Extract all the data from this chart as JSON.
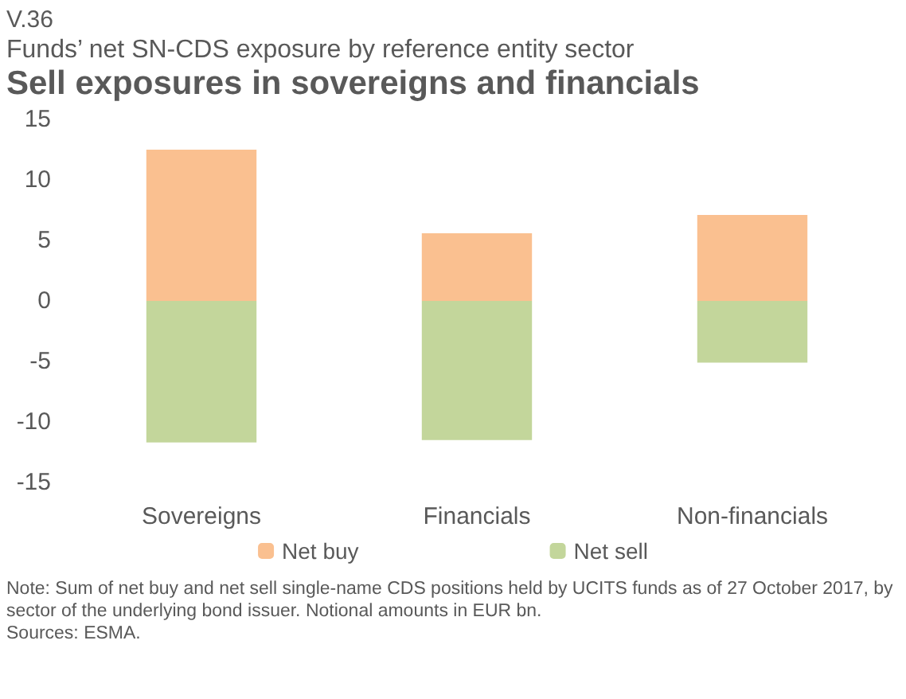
{
  "chart_data": {
    "type": "bar",
    "title": "Sell exposures in sovereigns and financials",
    "subtitle": "Funds’ net SN-CDS exposure by reference entity sector",
    "annotations": [
      "V.36",
      "Note: Sum of net buy and net sell single-name CDS positions held by UCITS funds as of 27 October 2017, by sector of the underlying bond issuer. Notional amounts in EUR bn.",
      "Sources: ESMA."
    ],
    "categories": [
      "Sovereigns",
      "Financials",
      "Non-financials"
    ],
    "series": [
      {
        "name": "Net buy",
        "color": "#fac090",
        "values": [
          12.5,
          5.6,
          7.1
        ]
      },
      {
        "name": "Net sell",
        "color": "#c3d69b",
        "values": [
          -11.7,
          -11.5,
          -5.1
        ]
      }
    ],
    "stacked": true,
    "ylim": [
      -15,
      15
    ],
    "yticks": [
      -15,
      -10,
      -5,
      0,
      5,
      10,
      15
    ],
    "grid": false,
    "legend": "bottom"
  }
}
